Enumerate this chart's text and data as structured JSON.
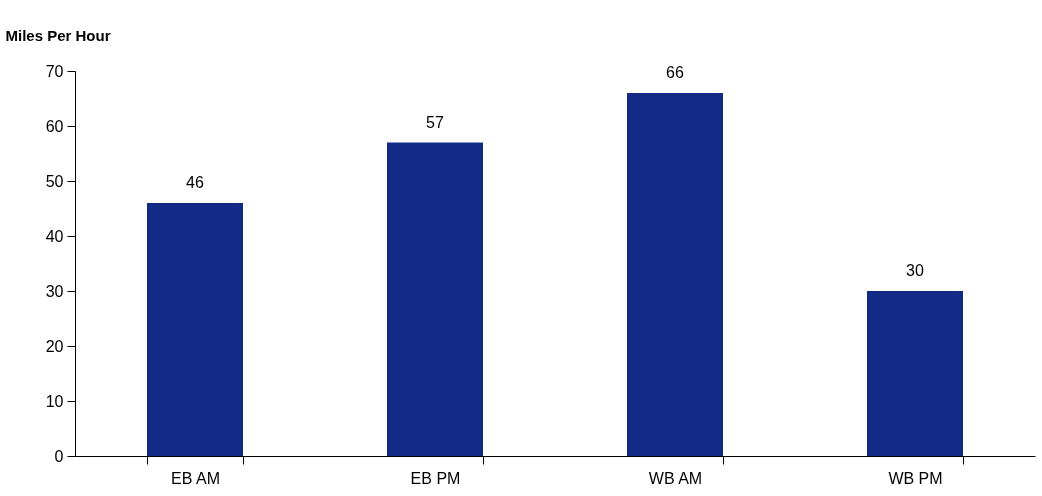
{
  "chart_data": {
    "type": "bar",
    "ylabel": "Miles Per Hour",
    "categories": [
      "EB AM",
      "EB PM",
      "WB AM",
      "WB PM"
    ],
    "values": [
      46,
      57,
      66,
      30
    ],
    "color": "#132a87",
    "ylim": [
      0,
      70
    ],
    "yticks": [
      0,
      10,
      20,
      30,
      40,
      50,
      60,
      70
    ],
    "grid": false,
    "data_labels": true
  }
}
